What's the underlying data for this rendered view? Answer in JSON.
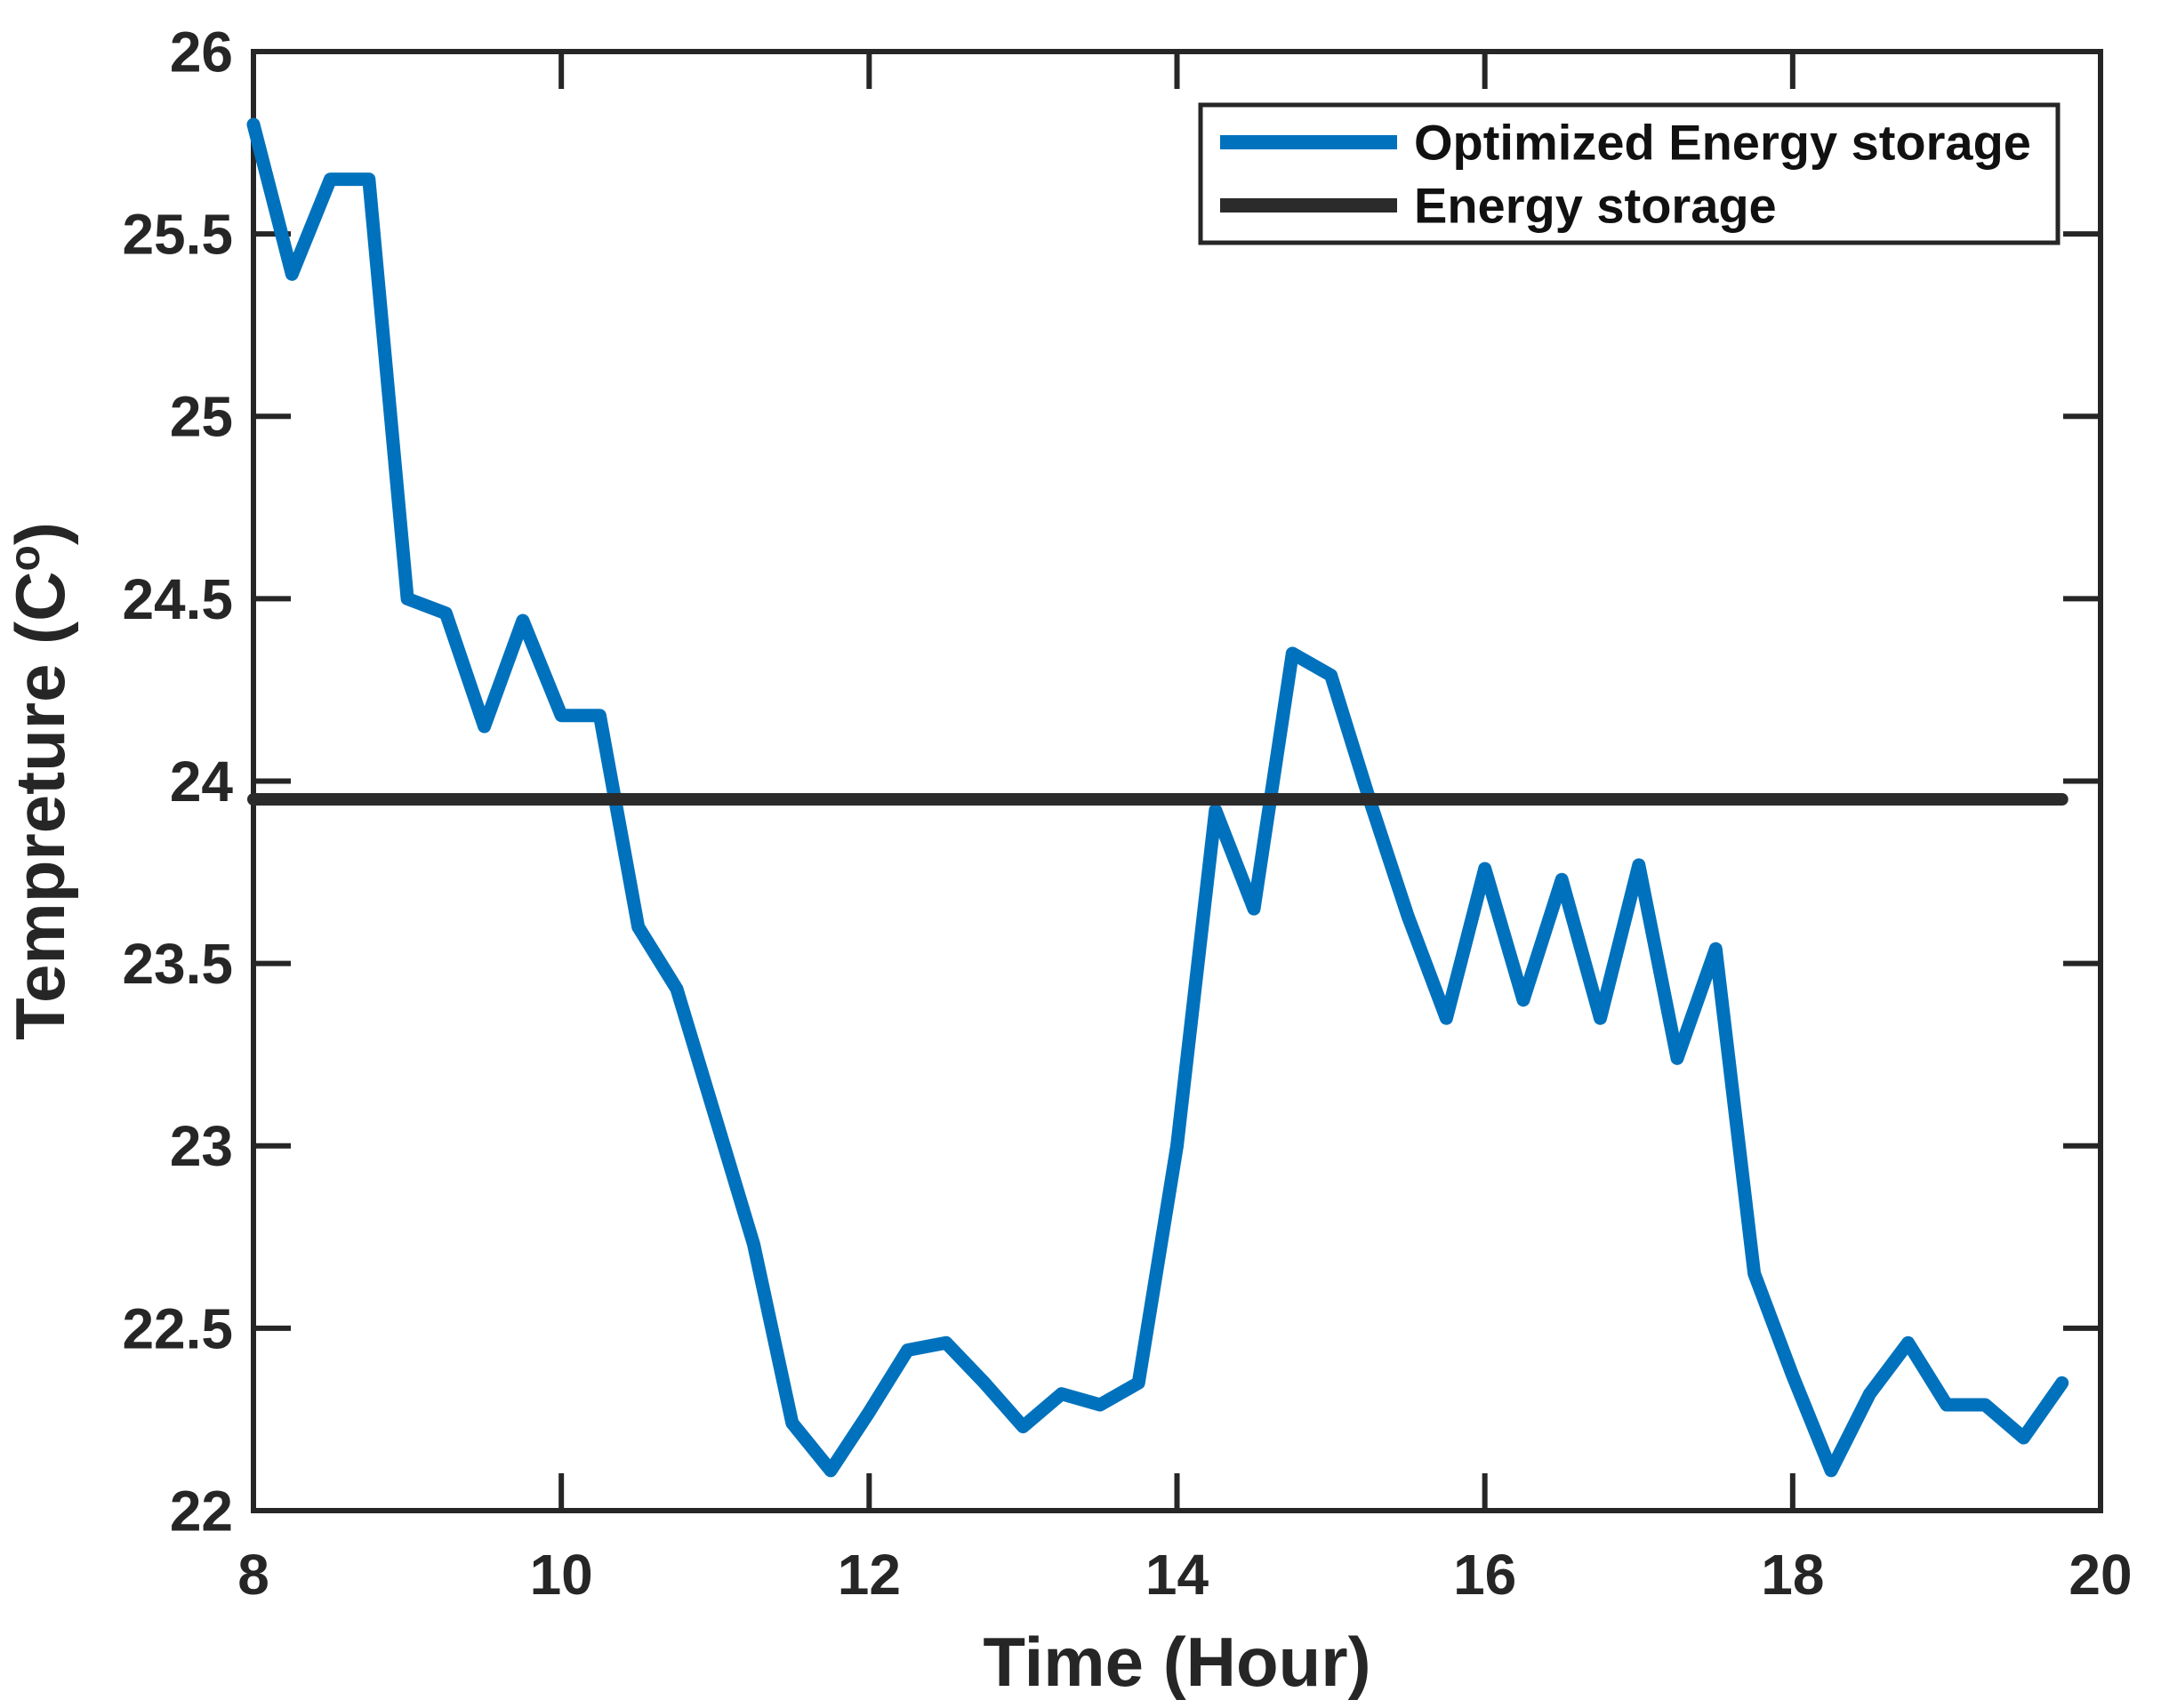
{
  "figure": {
    "background": "#ffffff"
  },
  "chart_data": {
    "type": "line",
    "title": "",
    "xlabel": "Time (Hour)",
    "ylabel_main": "Tempreture (C",
    "ylabel_superscript": "o",
    "ylabel_close": ")",
    "xlim": [
      8,
      20
    ],
    "ylim": [
      22,
      26
    ],
    "xticks": [
      8,
      10,
      12,
      14,
      16,
      18,
      20
    ],
    "xtick_labels": [
      "8",
      "10",
      "12",
      "14",
      "16",
      "18",
      "20"
    ],
    "yticks": [
      22,
      22.5,
      23,
      23.5,
      24,
      24.5,
      25,
      25.5,
      26
    ],
    "ytick_labels": [
      "22",
      "22.5",
      "23",
      "23.5",
      "24",
      "24.5",
      "25",
      "25.5",
      "26"
    ],
    "grid": false,
    "axis_color": "#262626",
    "legend_position": "top-right",
    "series": [
      {
        "name": "Optimized Energy storage",
        "color": "#0072BD",
        "line_width": 15,
        "x": [
          8.0,
          8.25,
          8.5,
          8.75,
          9.0,
          9.25,
          9.5,
          9.75,
          10.0,
          10.25,
          10.5,
          10.75,
          11.0,
          11.25,
          11.5,
          11.75,
          12.0,
          12.25,
          12.5,
          12.75,
          13.0,
          13.25,
          13.5,
          13.75,
          14.0,
          14.25,
          14.5,
          14.75,
          15.0,
          15.25,
          15.5,
          15.75,
          16.0,
          16.25,
          16.5,
          16.75,
          17.0,
          17.25,
          17.5,
          17.75,
          18.0,
          18.25,
          18.5,
          18.75,
          19.0,
          19.25,
          19.5,
          19.75
        ],
        "y": [
          25.8,
          25.39,
          25.65,
          25.65,
          24.5,
          24.46,
          24.15,
          24.44,
          24.18,
          24.18,
          23.6,
          23.43,
          23.08,
          22.73,
          22.24,
          22.11,
          22.27,
          22.44,
          22.46,
          22.35,
          22.23,
          22.32,
          22.29,
          22.35,
          23.0,
          23.92,
          23.65,
          24.35,
          24.29,
          23.95,
          23.63,
          23.35,
          23.76,
          23.4,
          23.73,
          23.35,
          23.77,
          23.24,
          23.54,
          22.65,
          22.37,
          22.11,
          22.32,
          22.46,
          22.29,
          22.29,
          22.2,
          22.35
        ]
      },
      {
        "name": "Energy storage",
        "color": "#2b2b2b",
        "line_width": 14,
        "x": [
          8.0,
          19.75
        ],
        "y": [
          23.95,
          23.95
        ]
      }
    ]
  },
  "legend": {
    "entries": [
      {
        "label": "Optimized Energy storage",
        "color": "#0072BD"
      },
      {
        "label": "Energy storage",
        "color": "#2b2b2b"
      }
    ]
  }
}
